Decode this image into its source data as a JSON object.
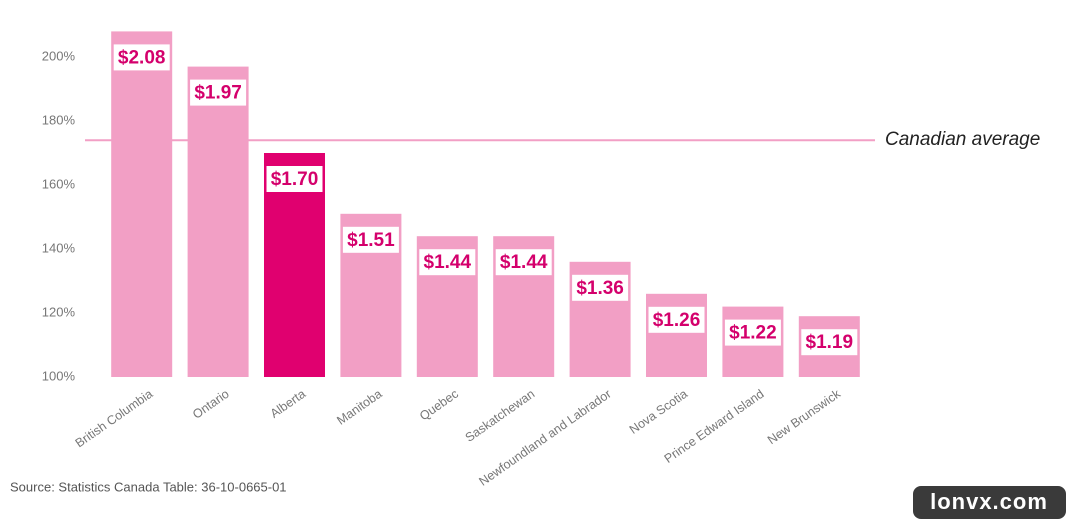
{
  "chart_data": {
    "type": "bar",
    "categories": [
      "British Columbia",
      "Ontario",
      "Alberta",
      "Manitoba",
      "Quebec",
      "Saskatchewan",
      "Newfoundland and Labrador",
      "Nova Scotia",
      "Prince Edward Island",
      "New Brunswick"
    ],
    "values": [
      208,
      197,
      170,
      151,
      144,
      144,
      136,
      126,
      122,
      119
    ],
    "value_labels": [
      "$2.08",
      "$1.97",
      "$1.70",
      "$1.51",
      "$1.44",
      "$1.44",
      "$1.36",
      "$1.26",
      "$1.22",
      "$1.19"
    ],
    "colors": [
      "#f29fc5",
      "#f29fc5",
      "#e0006f",
      "#f29fc5",
      "#f29fc5",
      "#f29fc5",
      "#f29fc5",
      "#f29fc5",
      "#f29fc5",
      "#f29fc5"
    ],
    "ylim": [
      100,
      210
    ],
    "yticks": [
      {
        "value": 100,
        "label": "100%"
      },
      {
        "value": 120,
        "label": "120%"
      },
      {
        "value": 140,
        "label": "140%"
      },
      {
        "value": 160,
        "label": "160%"
      },
      {
        "value": 180,
        "label": "180%"
      },
      {
        "value": 200,
        "label": "200%"
      }
    ],
    "reference_line": {
      "value": 174,
      "label": "Canadian average",
      "color": "#f29fc5"
    },
    "source": "Source: Statistics Canada Table: 36-10-0665-01",
    "watermark": "lonvx.com"
  }
}
